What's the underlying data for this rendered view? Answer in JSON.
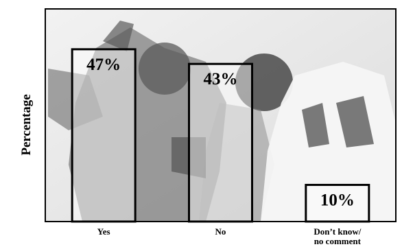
{
  "chart_data": {
    "type": "bar",
    "categories": [
      "Yes",
      "No",
      "Don’t know/\nno comment"
    ],
    "values": [
      47,
      43,
      10
    ],
    "value_labels": [
      "47%",
      "43%",
      "10%"
    ],
    "ylabel": "Percentage",
    "xlabel": "",
    "title": "",
    "ylim": [
      0,
      58
    ],
    "grid": false,
    "legend": "none",
    "background_image": "hockey-fight-photo",
    "colors": {
      "bar_fill": "#ffffff",
      "bar_stroke": "#000000",
      "text": "#000000"
    }
  }
}
